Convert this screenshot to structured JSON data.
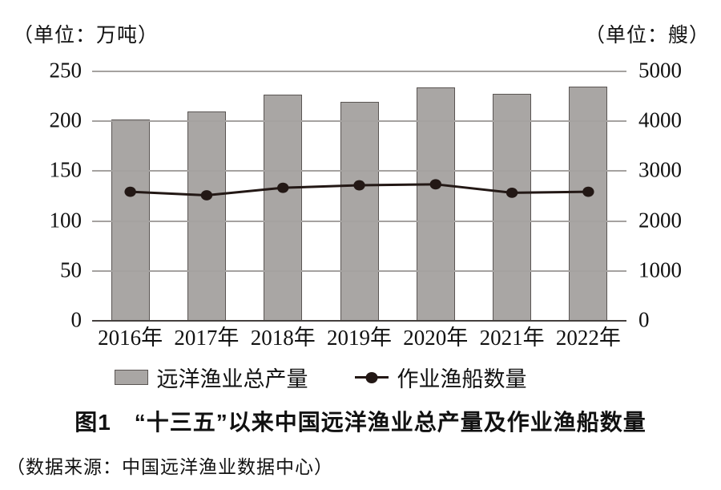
{
  "chart_data": {
    "type": "bar",
    "title": "图1　“十三五”以来中国远洋渔业总产量及作业渔船数量",
    "categories": [
      "2016年",
      "2017年",
      "2018年",
      "2019年",
      "2020年",
      "2021年",
      "2022年"
    ],
    "series": [
      {
        "name": "远洋渔业总产量",
        "type": "bar",
        "axis": "left",
        "unit": "万吨",
        "values": [
          201,
          209,
          226,
          219,
          233,
          227,
          234
        ]
      },
      {
        "name": "作业渔船数量",
        "type": "line",
        "axis": "right",
        "unit": "艘",
        "values": [
          2570,
          2500,
          2650,
          2700,
          2720,
          2550,
          2570
        ]
      }
    ],
    "left_axis": {
      "label": "（单位：万吨）",
      "ticks": [
        0,
        50,
        100,
        150,
        200,
        250
      ],
      "min": 0,
      "max": 250
    },
    "right_axis": {
      "label": "（单位：艘）",
      "ticks": [
        0,
        1000,
        2000,
        3000,
        4000,
        5000
      ],
      "min": 0,
      "max": 5000
    },
    "grid": true,
    "legend_position": "bottom"
  },
  "legend": {
    "items": [
      {
        "label": "远洋渔业总产量",
        "marker": "bar-swatch"
      },
      {
        "label": "作业渔船数量",
        "marker": "line-dot"
      }
    ]
  },
  "caption": "图1　“十三五”以来中国远洋渔业总产量及作业渔船数量",
  "source": "（数据来源：中国远洋渔业数据中心）",
  "colors": {
    "bar_fill": "#a9a6a4",
    "bar_border": "#5a5553",
    "line": "#231815",
    "dot": "#231815",
    "grid": "#a5a2a0",
    "axis_line": "#45403e",
    "text": "#111111",
    "background": "#ffffff"
  }
}
